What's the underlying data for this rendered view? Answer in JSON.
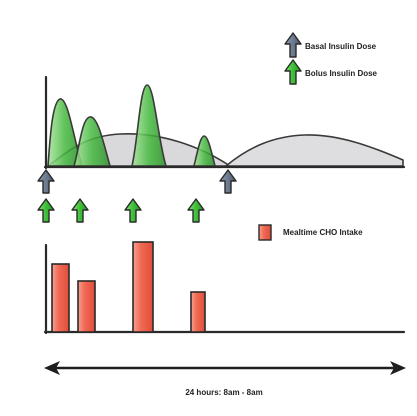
{
  "legend": {
    "basal_label": "Basal Insulin Dose",
    "bolus_label": "Bolus Insulin Dose",
    "cho_label": "Mealtime CHO Intake"
  },
  "timeline_label": "24 hours: 8am - 8am",
  "colors": {
    "basal": "#6f7e92",
    "bolus": "#3fbf3a",
    "cho": "#f0604e",
    "basal_curve_fill": "#c9c9cc",
    "bolus_curve_fill": "#7fcf74",
    "line": "#2a2a2a"
  },
  "icons": {
    "basal": "up-arrow-icon",
    "bolus": "up-arrow-icon",
    "cho": "square-icon",
    "timeline": "double-headed-arrow-icon"
  }
}
